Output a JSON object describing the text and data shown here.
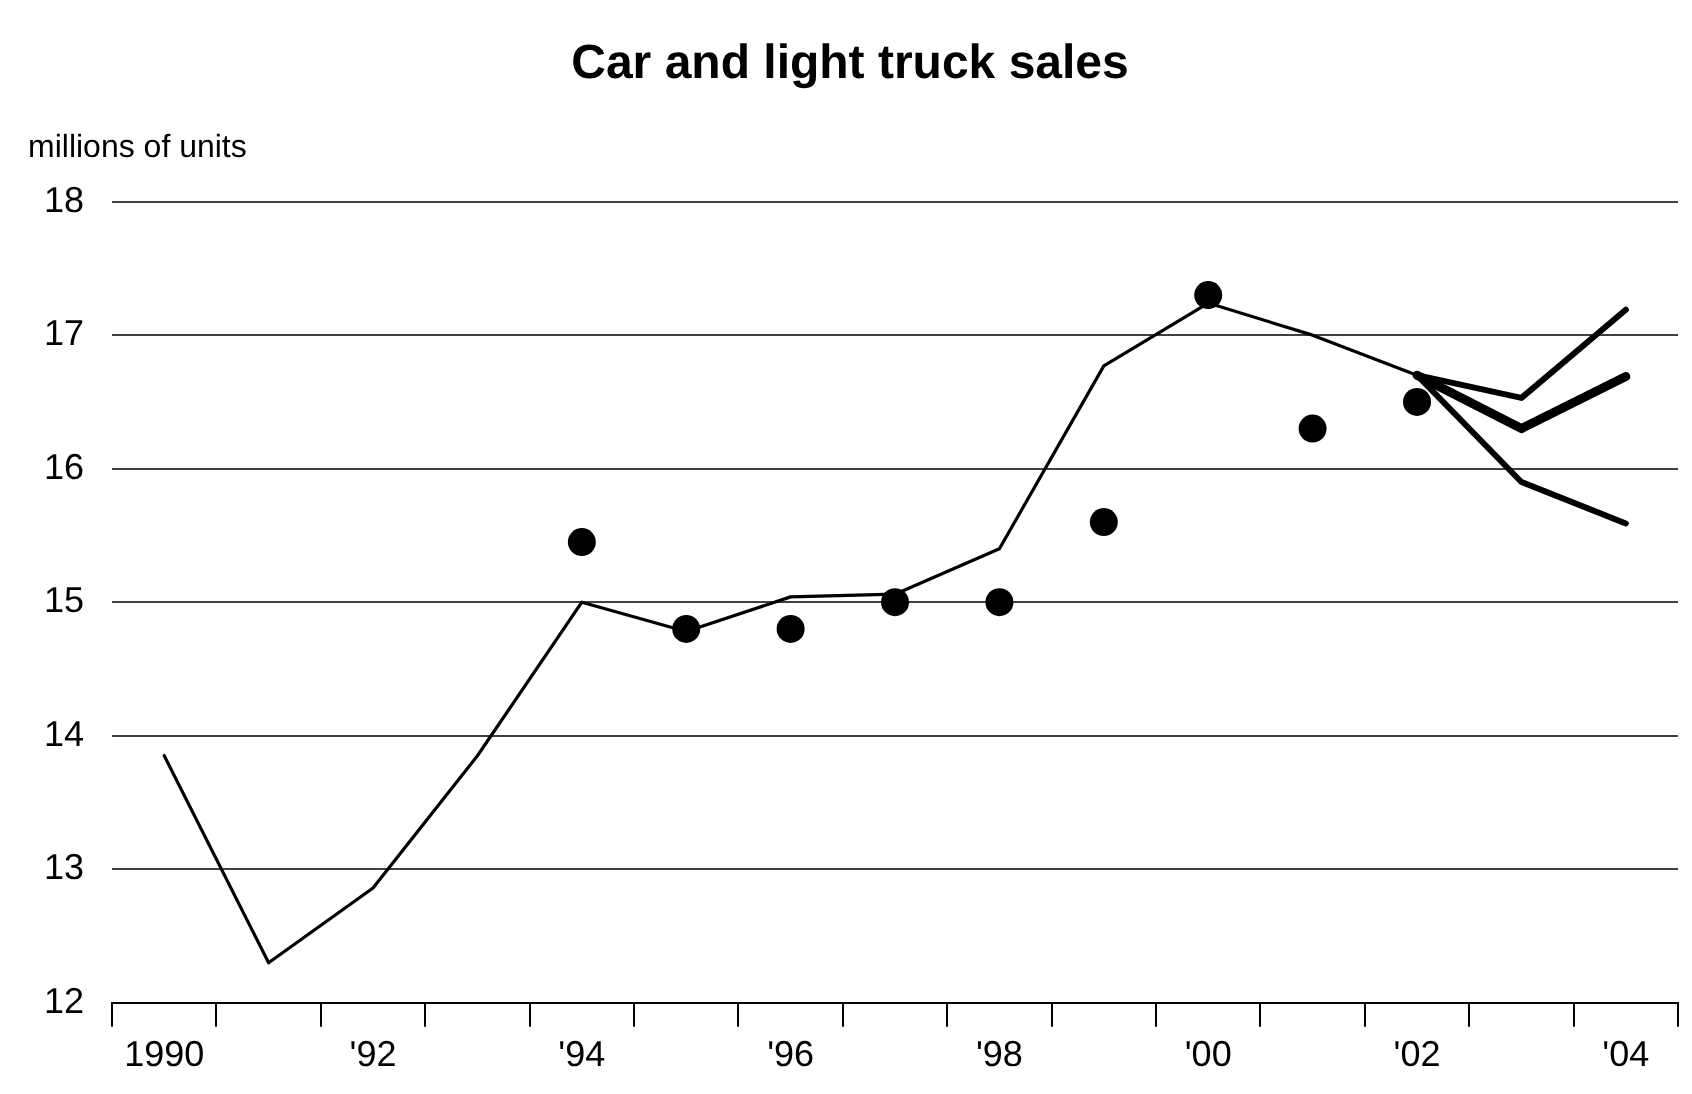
{
  "chart_data": {
    "type": "line",
    "title": "Car and light truck sales",
    "ylabel": "millions of units",
    "categories": [
      "1990",
      null,
      "'92",
      null,
      "'94",
      null,
      "'96",
      null,
      "'98",
      null,
      "'00",
      null,
      "'02",
      null,
      "'04"
    ],
    "ylim": [
      12,
      18
    ],
    "yticks": [
      12,
      13,
      14,
      15,
      16,
      17,
      18
    ],
    "grid": "y",
    "legend": false,
    "marker": "none",
    "series": [
      {
        "color": "#000000",
        "values": [
          13.85,
          12.3,
          12.86,
          13.85,
          15.0,
          14.78,
          15.04,
          15.06,
          15.4,
          16.77,
          17.24,
          17.0,
          16.7,
          null,
          null
        ]
      },
      {
        "color": "#000000",
        "values": [
          null,
          null,
          null,
          null,
          null,
          null,
          null,
          null,
          null,
          null,
          null,
          null,
          16.7,
          16.53,
          17.19
        ]
      },
      {
        "color": "#000000",
        "values": [
          null,
          null,
          null,
          null,
          null,
          null,
          null,
          null,
          null,
          null,
          null,
          null,
          16.7,
          16.3,
          16.69
        ]
      },
      {
        "color": "#000000",
        "values": [
          null,
          null,
          null,
          null,
          null,
          null,
          null,
          null,
          null,
          null,
          null,
          null,
          16.7,
          15.9,
          15.59
        ]
      },
      {
        "type": "scatter",
        "color": "#000000",
        "marker": "circle",
        "values": [
          null,
          null,
          null,
          null,
          15.45,
          14.8,
          14.8,
          15.0,
          15.0,
          15.6,
          17.3,
          16.3,
          16.5,
          null,
          null
        ]
      }
    ]
  }
}
